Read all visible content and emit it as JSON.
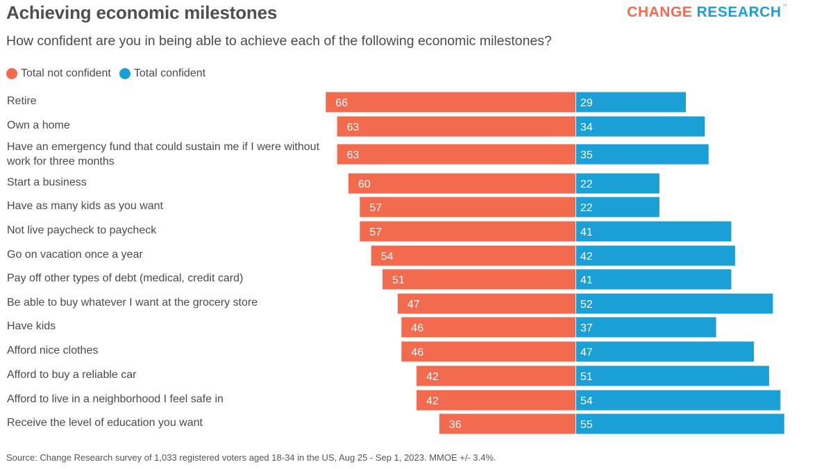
{
  "title": "Achieving economic milestones",
  "subtitle": "How confident are you in being able to achieve each of the following economic milestones?",
  "logo": {
    "part1": "CHANGE",
    "part2": "RESEARCH",
    "tm": "™"
  },
  "source": "Source: Change Research survey of 1,033 registered voters aged 18-34 in the US, Aug 25 - Sep 1, 2023. MMOE +/- 3.4%.",
  "colors": {
    "not_confident": "#f26b4e",
    "confident": "#1aa0d6"
  },
  "chart_data": {
    "type": "bar",
    "orientation": "horizontal-diverging",
    "legend_position": "top-left",
    "grid": false,
    "categories": [
      "Retire",
      "Own a home",
      "Have an emergency fund that could sustain me if I were without work for three months",
      "Start a business",
      "Have as many kids as you want",
      "Not live paycheck to paycheck",
      "Go on vacation once a year",
      "Pay off other types of debt (medical, credit card)",
      "Be able to buy whatever I want at the grocery store",
      "Have kids",
      "Afford nice clothes",
      "Afford to buy a reliable car",
      "Afford to live in a neighborhood I feel safe in",
      "Receive the level of education you want"
    ],
    "series": [
      {
        "name": "Total not confident",
        "values": [
          66,
          63,
          63,
          60,
          57,
          57,
          54,
          51,
          47,
          46,
          46,
          42,
          42,
          36
        ]
      },
      {
        "name": "Total confident",
        "values": [
          29,
          34,
          35,
          22,
          22,
          41,
          42,
          41,
          52,
          37,
          47,
          51,
          54,
          55
        ]
      }
    ]
  }
}
